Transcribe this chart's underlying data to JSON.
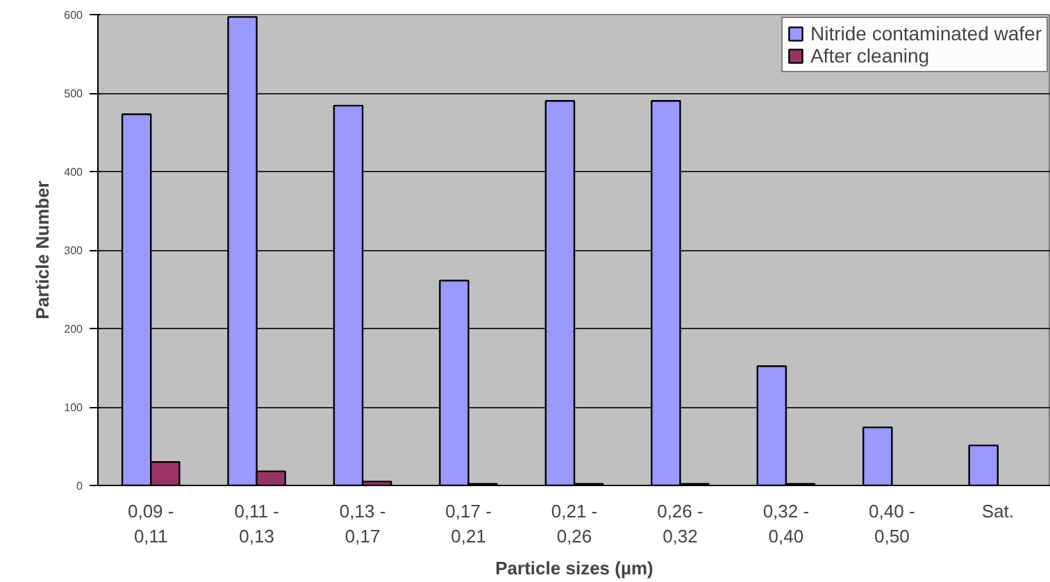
{
  "chart_data": {
    "type": "bar",
    "xlabel": "Particle sizes (µm)",
    "ylabel": "Particle Number",
    "categories": [
      "0,09 -\n0,11",
      "0,11 -\n0,13",
      "0,13 -\n0,17",
      "0,17 -\n0,21",
      "0,21 -\n0,26",
      "0,26 -\n0,32",
      "0,32 -\n0,40",
      "0,40 -\n0,50",
      "Sat."
    ],
    "series": [
      {
        "name": "Nitride contaminated wafer",
        "color": "#9999ff",
        "values": [
          473,
          597,
          484,
          261,
          490,
          490,
          152,
          74,
          51
        ]
      },
      {
        "name": "After cleaning",
        "color": "#993366",
        "values": [
          30,
          18,
          5,
          2,
          2,
          2,
          2,
          null,
          null
        ]
      }
    ],
    "ylim": [
      0,
      600
    ],
    "yticks": [
      0,
      100,
      200,
      300,
      400,
      500,
      600
    ],
    "grid": "y",
    "legend": "top right"
  }
}
